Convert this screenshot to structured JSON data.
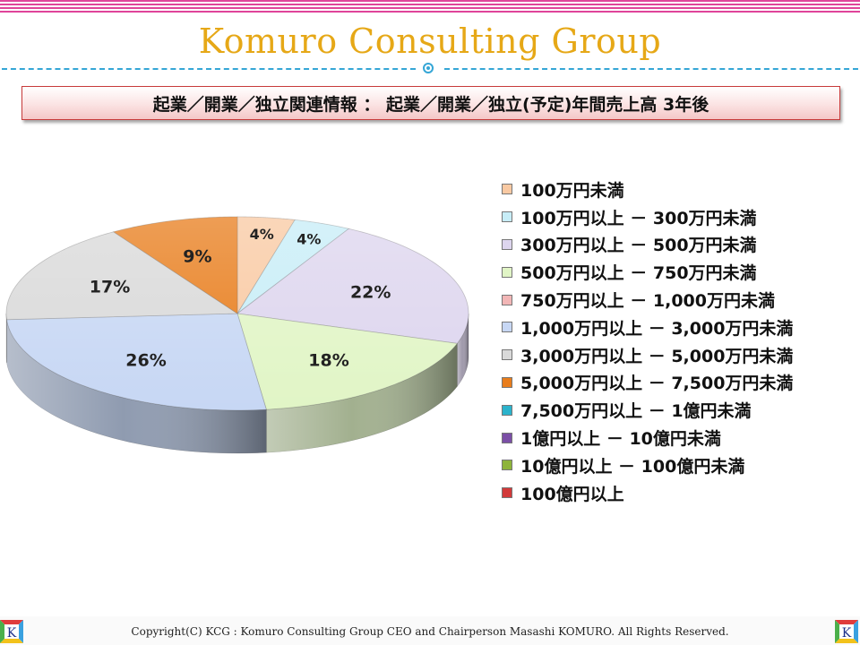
{
  "header": {
    "title": "Komuro Consulting Group",
    "subtitle": "起業／開業／独立関連情報 ： 起業／開業／独立(予定)年間売上高 3年後"
  },
  "chart_data": {
    "type": "pie",
    "title": "",
    "categories": [
      "100万円未満",
      "100万円以上 － 300万円未満",
      "300万円以上 － 500万円未満",
      "500万円以上 － 750万円未満",
      "750万円以上 － 1,000万円未満",
      "1,000万円以上 － 3,000万円未満",
      "3,000万円以上 － 5,000万円未満",
      "5,000万円以上 － 7,500万円未満",
      "7,500万円以上 － 1億円未満",
      "1億円以上 － 10億円未満",
      "10億円以上 － 100億円未満",
      "100億円以上"
    ],
    "values": [
      4,
      4,
      22,
      18,
      0,
      26,
      17,
      9,
      0,
      0,
      0,
      0
    ],
    "data_labels": [
      "4%",
      "4%",
      "22%",
      "18%",
      "",
      "26%",
      "17%",
      "9%",
      "",
      "",
      "",
      ""
    ],
    "colors": [
      "#f9c9a2",
      "#c7edf7",
      "#ddd5ee",
      "#e1f5c6",
      "#f2b6b6",
      "#c7d7f4",
      "#d9d9d9",
      "#e87d1c",
      "#2bb3cc",
      "#7b4fa6",
      "#8eb43a",
      "#d23a3a"
    ],
    "legend_position": "right"
  },
  "footer": {
    "copyright": "Copyright(C)  KCG : Komuro Consulting Group CEO and Chairperson Masashi KOMURO. All Rights Reserved.",
    "logo_letter": "K"
  }
}
